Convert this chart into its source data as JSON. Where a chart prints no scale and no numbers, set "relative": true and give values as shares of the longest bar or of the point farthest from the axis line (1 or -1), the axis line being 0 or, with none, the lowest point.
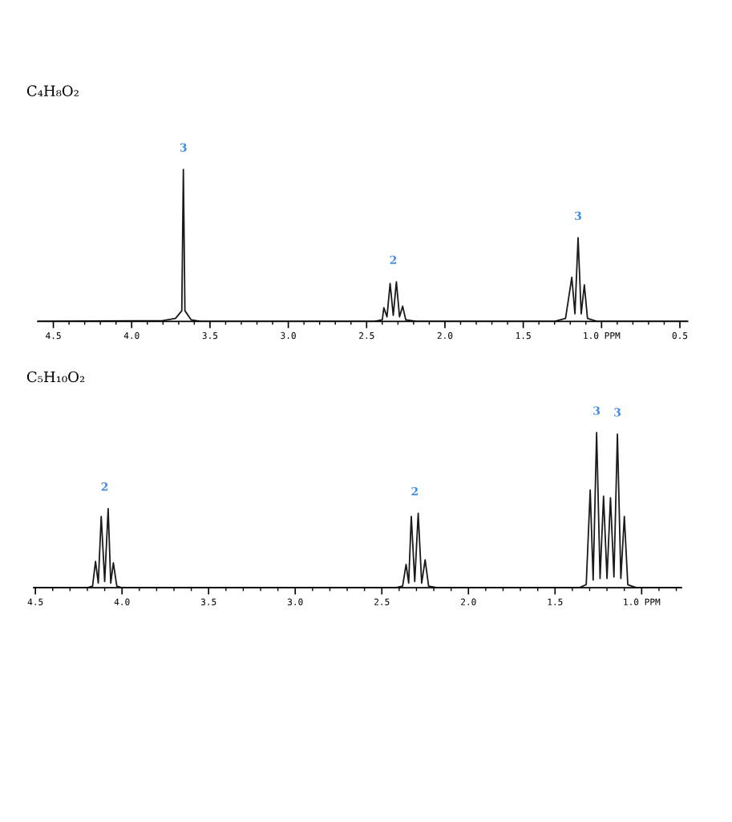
{
  "chart_data": [
    {
      "type": "line",
      "title": "C₄H₈O₂",
      "relative": true,
      "grid": false,
      "marker": "none",
      "line_style": "solid",
      "tick_labels": "x",
      "xlim": [
        4.6,
        0.45
      ],
      "xticks": [
        4.5,
        {
          "value": 4.4,
          "label": null
        },
        {
          "value": 4.3,
          "label": null
        },
        {
          "value": 4.2,
          "label": null
        },
        {
          "value": 4.1,
          "label": null
        },
        {
          "value": 4.0,
          "label": "4.0"
        },
        {
          "value": 3.9,
          "label": null
        },
        {
          "value": 3.8,
          "label": null
        },
        {
          "value": 3.7,
          "label": null
        },
        {
          "value": 3.6,
          "label": null
        },
        3.5,
        {
          "value": 3.4,
          "label": null
        },
        {
          "value": 3.3,
          "label": null
        },
        {
          "value": 3.2,
          "label": null
        },
        {
          "value": 3.1,
          "label": null
        },
        {
          "value": 3.0,
          "label": "3.0"
        },
        {
          "value": 2.9,
          "label": null
        },
        {
          "value": 2.8,
          "label": null
        },
        {
          "value": 2.7,
          "label": null
        },
        {
          "value": 2.6,
          "label": null
        },
        2.5,
        {
          "value": 2.4,
          "label": null
        },
        {
          "value": 2.3,
          "label": null
        },
        {
          "value": 2.2,
          "label": null
        },
        {
          "value": 2.1,
          "label": null
        },
        {
          "value": 2.0,
          "label": "2.0"
        },
        {
          "value": 1.9,
          "label": null
        },
        {
          "value": 1.8,
          "label": null
        },
        {
          "value": 1.7,
          "label": null
        },
        {
          "value": 1.6,
          "label": null
        },
        1.5,
        {
          "value": 1.4,
          "label": null
        },
        {
          "value": 1.3,
          "label": null
        },
        {
          "value": 1.2,
          "label": null
        },
        {
          "value": 1.1,
          "label": null
        },
        {
          "value": 1.0,
          "label": "1.0 PPM"
        },
        {
          "value": 0.9,
          "label": null
        },
        {
          "value": 0.8,
          "label": null
        },
        {
          "value": 0.7,
          "label": null
        },
        {
          "value": 0.6,
          "label": null
        },
        0.5
      ],
      "series": [
        {
          "color": "#1a1a1a",
          "x": [
            4.6,
            3.8,
            3.72,
            3.68,
            3.67,
            3.66,
            3.62,
            3.56,
            2.45,
            2.4,
            2.39,
            2.37,
            2.35,
            2.33,
            2.31,
            2.29,
            2.27,
            2.25,
            2.18,
            1.3,
            1.23,
            1.19,
            1.17,
            1.15,
            1.13,
            1.11,
            1.09,
            1.03,
            0.45
          ],
          "values": [
            0.0,
            0.005,
            0.02,
            0.07,
            1.0,
            0.07,
            0.01,
            0.0,
            0.0,
            0.01,
            0.09,
            0.03,
            0.25,
            0.04,
            0.26,
            0.03,
            0.1,
            0.01,
            0.0,
            0.0,
            0.02,
            0.29,
            0.05,
            0.55,
            0.05,
            0.24,
            0.02,
            0.0,
            0.0
          ]
        }
      ],
      "annotations": [
        {
          "text": "3",
          "x": 3.67,
          "y": 1.0
        },
        {
          "text": "2",
          "x": 2.33,
          "y": 0.26
        },
        {
          "text": "3",
          "x": 1.15,
          "y": 0.55
        }
      ]
    },
    {
      "type": "line",
      "title": "C₅H₁₀O₂",
      "relative": true,
      "grid": false,
      "marker": "none",
      "line_style": "solid",
      "tick_labels": "x",
      "xlim": [
        4.51,
        0.77
      ],
      "xticks": [
        4.5,
        {
          "value": 4.4,
          "label": null
        },
        {
          "value": 4.3,
          "label": null
        },
        {
          "value": 4.2,
          "label": null
        },
        {
          "value": 4.1,
          "label": null
        },
        {
          "value": 4.0,
          "label": "4.0"
        },
        {
          "value": 3.9,
          "label": null
        },
        {
          "value": 3.8,
          "label": null
        },
        {
          "value": 3.7,
          "label": null
        },
        {
          "value": 3.6,
          "label": null
        },
        3.5,
        {
          "value": 3.4,
          "label": null
        },
        {
          "value": 3.3,
          "label": null
        },
        {
          "value": 3.2,
          "label": null
        },
        {
          "value": 3.1,
          "label": null
        },
        {
          "value": 3.0,
          "label": "3.0"
        },
        {
          "value": 2.9,
          "label": null
        },
        {
          "value": 2.8,
          "label": null
        },
        {
          "value": 2.7,
          "label": null
        },
        {
          "value": 2.6,
          "label": null
        },
        2.5,
        {
          "value": 2.4,
          "label": null
        },
        {
          "value": 2.3,
          "label": null
        },
        {
          "value": 2.2,
          "label": null
        },
        {
          "value": 2.1,
          "label": null
        },
        {
          "value": 2.0,
          "label": "2.0"
        },
        {
          "value": 1.9,
          "label": null
        },
        {
          "value": 1.8,
          "label": null
        },
        {
          "value": 1.7,
          "label": null
        },
        {
          "value": 1.6,
          "label": null
        },
        1.5,
        {
          "value": 1.4,
          "label": null
        },
        {
          "value": 1.3,
          "label": null
        },
        {
          "value": 1.2,
          "label": null
        },
        {
          "value": 1.1,
          "label": null
        },
        {
          "value": 1.0,
          "label": "1.0 PPM"
        },
        {
          "value": 0.9,
          "label": null
        },
        {
          "value": 0.8,
          "label": null
        }
      ],
      "series": [
        {
          "color": "#1a1a1a",
          "x": [
            4.51,
            4.2,
            4.17,
            4.153,
            4.137,
            4.12,
            4.1,
            4.08,
            4.065,
            4.05,
            4.03,
            4.0,
            2.42,
            2.38,
            2.36,
            2.345,
            2.33,
            2.31,
            2.29,
            2.27,
            2.25,
            2.23,
            2.18,
            1.36,
            1.32,
            1.297,
            1.28,
            1.26,
            1.24,
            1.22,
            1.2,
            1.18,
            1.16,
            1.14,
            1.12,
            1.1,
            1.08,
            1.03,
            0.77
          ],
          "values": [
            0.0,
            0.0,
            0.01,
            0.17,
            0.03,
            0.46,
            0.04,
            0.51,
            0.03,
            0.16,
            0.01,
            0.0,
            0.0,
            0.01,
            0.15,
            0.03,
            0.46,
            0.04,
            0.48,
            0.03,
            0.18,
            0.01,
            0.0,
            0.0,
            0.02,
            0.63,
            0.05,
            1.0,
            0.06,
            0.59,
            0.06,
            0.58,
            0.07,
            0.99,
            0.06,
            0.46,
            0.02,
            0.0,
            0.0
          ]
        }
      ],
      "annotations": [
        {
          "text": "2",
          "x": 4.1,
          "y": 0.51
        },
        {
          "text": "2",
          "x": 2.31,
          "y": 0.48
        },
        {
          "text": "3",
          "x": 1.26,
          "y": 1.0
        },
        {
          "text": "3",
          "x": 1.14,
          "y": 0.99
        }
      ]
    }
  ]
}
